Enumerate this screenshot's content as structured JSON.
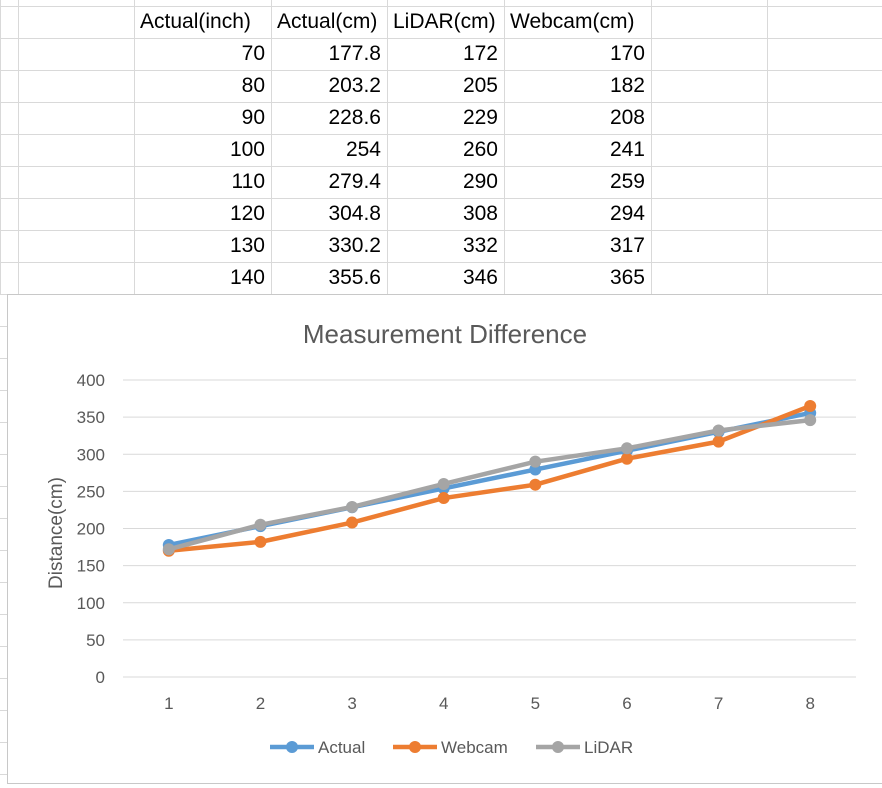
{
  "table": {
    "headers": [
      "Actual(inch)",
      "Actual(cm)",
      "LiDAR(cm)",
      "Webcam(cm)"
    ],
    "rows": [
      [
        "70",
        "177.8",
        "172",
        "170"
      ],
      [
        "80",
        "203.2",
        "205",
        "182"
      ],
      [
        "90",
        "228.6",
        "229",
        "208"
      ],
      [
        "100",
        "254",
        "260",
        "241"
      ],
      [
        "110",
        "279.4",
        "290",
        "259"
      ],
      [
        "120",
        "304.8",
        "308",
        "294"
      ],
      [
        "130",
        "330.2",
        "332",
        "317"
      ],
      [
        "140",
        "355.6",
        "346",
        "365"
      ]
    ]
  },
  "chart_data": {
    "type": "line",
    "title": "Measurement Difference",
    "xlabel": "",
    "ylabel": "Distance(cm)",
    "x": [
      1,
      2,
      3,
      4,
      5,
      6,
      7,
      8
    ],
    "ylim": [
      0,
      400
    ],
    "yticks": [
      "0",
      "50",
      "100",
      "150",
      "200",
      "250",
      "300",
      "350",
      "400"
    ],
    "xticks": [
      "1",
      "2",
      "3",
      "4",
      "5",
      "6",
      "7",
      "8"
    ],
    "grid": true,
    "legend_position": "bottom",
    "series": [
      {
        "name": "Actual",
        "color": "#5b9bd5",
        "values": [
          177.8,
          203.2,
          228.6,
          254,
          279.4,
          304.8,
          330.2,
          355.6
        ]
      },
      {
        "name": "Webcam",
        "color": "#ed7d31",
        "values": [
          170,
          182,
          208,
          241,
          259,
          294,
          317,
          365
        ]
      },
      {
        "name": "LiDAR",
        "color": "#a5a5a5",
        "values": [
          172,
          205,
          229,
          260,
          290,
          308,
          332,
          346
        ]
      }
    ]
  }
}
